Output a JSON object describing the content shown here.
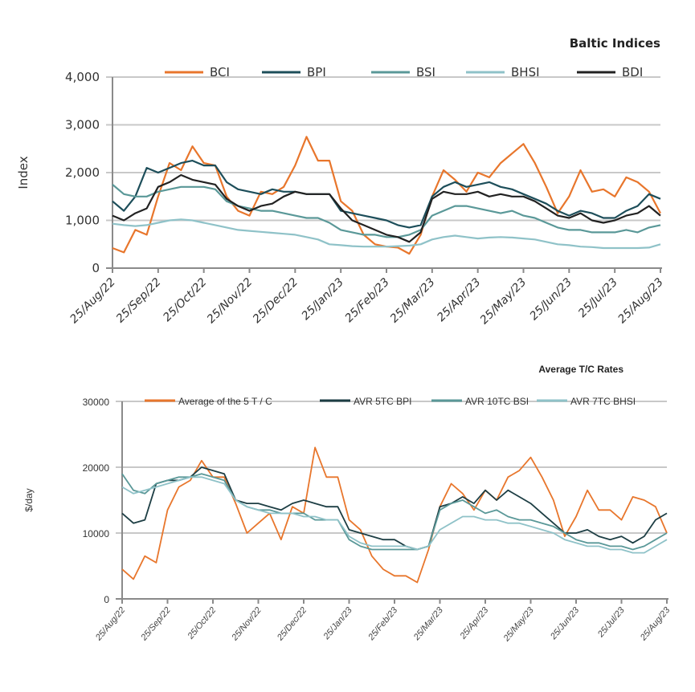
{
  "chart_data": [
    {
      "type": "line",
      "title": "Baltic Indices",
      "xlabel": "",
      "ylabel": "Index",
      "ylim": [
        0,
        4000
      ],
      "yticks": [
        0,
        1000,
        2000,
        3000,
        4000
      ],
      "ytick_labels": [
        "0",
        "1,000",
        "2,000",
        "3,000",
        "4,000"
      ],
      "xtick_labels": [
        "25/Aug/22",
        "25/Sep/22",
        "25/Oct/22",
        "25/Nov/22",
        "25/Dec/22",
        "25/Jan/23",
        "25/Feb/23",
        "25/Mar/23",
        "25/Apr/23",
        "25/May/23",
        "25/Jun/23",
        "25/Jul/23",
        "25/Aug/23"
      ],
      "x_months": [
        0,
        0.25,
        0.5,
        0.75,
        1,
        1.25,
        1.5,
        1.75,
        2,
        2.25,
        2.5,
        2.75,
        3,
        3.25,
        3.5,
        3.75,
        4,
        4.25,
        4.5,
        4.75,
        5,
        5.25,
        5.5,
        5.75,
        6,
        6.25,
        6.5,
        6.75,
        7,
        7.25,
        7.5,
        7.75,
        8,
        8.25,
        8.5,
        8.75,
        9,
        9.25,
        9.5,
        9.75,
        10,
        10.25,
        10.5,
        10.75,
        11,
        11.25,
        11.5,
        11.75,
        12
      ],
      "grid": true,
      "legend": "top",
      "series": [
        {
          "name": "BCI",
          "color": "#e8762c",
          "values": [
            420,
            330,
            800,
            700,
            1500,
            2200,
            2050,
            2550,
            2200,
            2150,
            1500,
            1200,
            1100,
            1600,
            1550,
            1700,
            2150,
            2750,
            2250,
            2250,
            1400,
            1200,
            700,
            500,
            450,
            430,
            300,
            700,
            1500,
            2050,
            1850,
            1600,
            2000,
            1900,
            2200,
            2400,
            2600,
            2200,
            1700,
            1150,
            1500,
            2050,
            1600,
            1650,
            1500,
            1900,
            1800,
            1600,
            1150
          ]
        },
        {
          "name": "BPI",
          "color": "#1d4e5a",
          "values": [
            1400,
            1200,
            1500,
            2100,
            2000,
            2100,
            2200,
            2250,
            2150,
            2150,
            1800,
            1650,
            1600,
            1550,
            1650,
            1600,
            1600,
            1550,
            1550,
            1550,
            1200,
            1150,
            1100,
            1050,
            1000,
            900,
            850,
            900,
            1500,
            1700,
            1800,
            1700,
            1750,
            1800,
            1700,
            1650,
            1550,
            1450,
            1350,
            1200,
            1100,
            1200,
            1150,
            1050,
            1050,
            1200,
            1300,
            1550,
            1450
          ]
        },
        {
          "name": "BSI",
          "color": "#5a9898",
          "values": [
            1750,
            1550,
            1500,
            1500,
            1600,
            1650,
            1700,
            1700,
            1700,
            1650,
            1400,
            1300,
            1250,
            1200,
            1200,
            1150,
            1100,
            1050,
            1050,
            950,
            800,
            750,
            700,
            700,
            650,
            650,
            700,
            800,
            1100,
            1200,
            1300,
            1300,
            1250,
            1200,
            1150,
            1200,
            1100,
            1050,
            950,
            850,
            800,
            800,
            750,
            750,
            750,
            800,
            750,
            850,
            900
          ]
        },
        {
          "name": "BHSI",
          "color": "#8fc2c8",
          "values": [
            930,
            900,
            880,
            900,
            950,
            1000,
            1020,
            1000,
            950,
            900,
            850,
            800,
            780,
            760,
            740,
            720,
            700,
            650,
            600,
            500,
            480,
            460,
            450,
            450,
            450,
            460,
            470,
            500,
            600,
            650,
            680,
            650,
            620,
            640,
            650,
            640,
            620,
            600,
            550,
            500,
            480,
            450,
            440,
            420,
            420,
            420,
            420,
            430,
            500
          ]
        },
        {
          "name": "BDI",
          "color": "#222222",
          "values": [
            1100,
            1000,
            1150,
            1250,
            1700,
            1800,
            1950,
            1850,
            1800,
            1750,
            1450,
            1300,
            1200,
            1300,
            1350,
            1500,
            1600,
            1550,
            1550,
            1550,
            1250,
            1000,
            900,
            800,
            700,
            650,
            550,
            750,
            1450,
            1600,
            1550,
            1550,
            1600,
            1500,
            1550,
            1500,
            1500,
            1400,
            1250,
            1100,
            1050,
            1150,
            1000,
            950,
            1000,
            1100,
            1150,
            1300,
            1100
          ]
        }
      ]
    },
    {
      "type": "line",
      "title": "Average T/C Rates",
      "xlabel": "",
      "ylabel": "$/day",
      "ylim": [
        0,
        30000
      ],
      "yticks": [
        0,
        10000,
        20000,
        30000
      ],
      "ytick_labels": [
        "0",
        "10000",
        "20000",
        "30000"
      ],
      "xtick_labels": [
        "25/Aug/22",
        "25/Sep/22",
        "25/Oct/22",
        "25/Nov/22",
        "25/Dec/22",
        "25/Jan/23",
        "25/Feb/23",
        "25/Mar/23",
        "25/Apr/23",
        "25/May/23",
        "25/Jun/23",
        "25/Jul/23",
        "25/Aug/23"
      ],
      "x_months": [
        0,
        0.25,
        0.5,
        0.75,
        1,
        1.25,
        1.5,
        1.75,
        2,
        2.25,
        2.5,
        2.75,
        3,
        3.25,
        3.5,
        3.75,
        4,
        4.25,
        4.5,
        4.75,
        5,
        5.25,
        5.5,
        5.75,
        6,
        6.25,
        6.5,
        6.75,
        7,
        7.25,
        7.5,
        7.75,
        8,
        8.25,
        8.5,
        8.75,
        9,
        9.25,
        9.5,
        9.75,
        10,
        10.25,
        10.5,
        10.75,
        11,
        11.25,
        11.5,
        11.75,
        12
      ],
      "grid": true,
      "legend": "top",
      "series": [
        {
          "name": "Average of the 5 T / C",
          "color": "#e8762c",
          "values": [
            4500,
            3000,
            6500,
            5500,
            13500,
            17000,
            18000,
            21000,
            18500,
            18500,
            14500,
            10000,
            11500,
            13000,
            9000,
            14000,
            13000,
            23000,
            18500,
            18500,
            12000,
            10500,
            6500,
            4500,
            3500,
            3500,
            2500,
            7500,
            14000,
            17500,
            16000,
            13500,
            16500,
            15000,
            18500,
            19500,
            21500,
            18500,
            15000,
            9500,
            12500,
            16500,
            13500,
            13500,
            12000,
            15500,
            15000,
            14000,
            10000
          ]
        },
        {
          "name": "AVR 5TC BPI",
          "color": "#1d3e44",
          "values": [
            13000,
            11500,
            12000,
            17500,
            18000,
            18000,
            18500,
            20000,
            19500,
            19000,
            15000,
            14500,
            14500,
            14000,
            13500,
            14500,
            15000,
            14500,
            14000,
            14000,
            10500,
            10000,
            9500,
            9000,
            9000,
            8000,
            7500,
            8000,
            14000,
            14500,
            15500,
            14500,
            16500,
            15000,
            16500,
            15500,
            14500,
            13000,
            11500,
            10000,
            10000,
            10500,
            9500,
            9000,
            9500,
            8500,
            9500,
            12000,
            13000
          ]
        },
        {
          "name": "AVR 10TC BSI",
          "color": "#5a9898",
          "values": [
            19000,
            16500,
            16000,
            17500,
            18000,
            18500,
            18500,
            19000,
            18500,
            18000,
            15000,
            14000,
            13500,
            13500,
            13000,
            13000,
            13000,
            12000,
            12000,
            12000,
            9000,
            8000,
            7500,
            7500,
            7500,
            7500,
            7500,
            8000,
            13500,
            14500,
            15000,
            14000,
            13000,
            13500,
            12500,
            12000,
            12000,
            11500,
            11000,
            10000,
            9000,
            8500,
            8500,
            8000,
            8000,
            7500,
            8000,
            9000,
            10000
          ]
        },
        {
          "name": "AVR 7TC BHSI",
          "color": "#8fc2c8",
          "values": [
            17000,
            16000,
            16500,
            17000,
            17500,
            18000,
            18500,
            18500,
            18000,
            17500,
            15000,
            14000,
            13500,
            13000,
            13000,
            13000,
            12500,
            12500,
            12000,
            12000,
            9500,
            8500,
            8000,
            8000,
            8000,
            8000,
            7500,
            8000,
            10500,
            11500,
            12500,
            12500,
            12000,
            12000,
            11500,
            11500,
            11000,
            10500,
            10000,
            9000,
            8500,
            8000,
            8000,
            7500,
            7500,
            7000,
            7000,
            8000,
            9000
          ]
        }
      ]
    }
  ]
}
